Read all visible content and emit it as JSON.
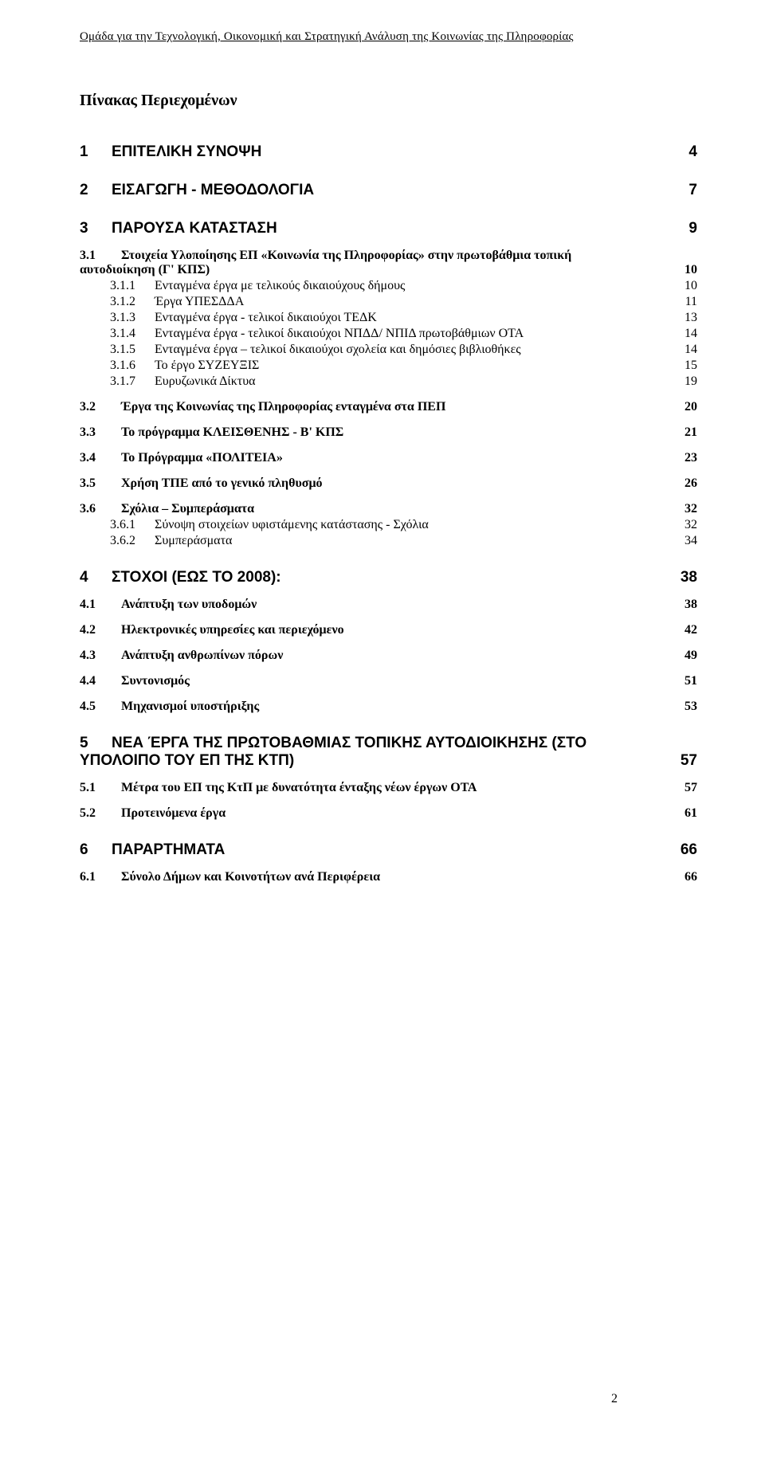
{
  "header": "Ομάδα για την Τεχνολογική, Οικονομική και Στρατηγική Ανάλυση της Κοινωνίας της Πληροφορίας",
  "title": "Πίνακας Περιεχομένων",
  "page_number": "2",
  "toc": {
    "s1": {
      "num": "1",
      "label": "ΕΠΙΤΕΛΙΚΗ ΣΥΝΟΨΗ",
      "page": "4"
    },
    "s2": {
      "num": "2",
      "label": "ΕΙΣΑΓΩΓΗ - ΜΕΘΟΔΟΛΟΓΙΑ",
      "page": "7"
    },
    "s3": {
      "num": "3",
      "label": "ΠΑΡΟΥΣΑ ΚΑΤΑΣΤΑΣΗ",
      "page": "9"
    },
    "s3_1": {
      "num": "3.1",
      "label_a": "Στοιχεία Υλοποίησης ΕΠ «Κοινωνία της Πληροφορίας» στην πρωτοβάθμια τοπική",
      "label_b": "αυτοδιοίκηση (Γ' ΚΠΣ)",
      "page": "10"
    },
    "s3_1_1": {
      "num": "3.1.1",
      "label": "Ενταγμένα έργα με τελικούς δικαιούχους δήμους",
      "page": "10"
    },
    "s3_1_2": {
      "num": "3.1.2",
      "label": "Έργα ΥΠΕΣΔΔΑ",
      "page": "11"
    },
    "s3_1_3": {
      "num": "3.1.3",
      "label": "Ενταγμένα έργα - τελικοί δικαιούχοι ΤΕΔΚ",
      "page": "13"
    },
    "s3_1_4": {
      "num": "3.1.4",
      "label": "Ενταγμένα έργα - τελικοί δικαιούχοι ΝΠΔΔ/ ΝΠΙΔ πρωτοβάθμιων ΟΤΑ",
      "page": "14"
    },
    "s3_1_5": {
      "num": "3.1.5",
      "label": "Ενταγμένα έργα – τελικοί δικαιούχοι σχολεία και δημόσιες βιβλιοθήκες",
      "page": "14"
    },
    "s3_1_6": {
      "num": "3.1.6",
      "label": "Το έργο ΣΥΖΕΥΞΙΣ",
      "page": "15"
    },
    "s3_1_7": {
      "num": "3.1.7",
      "label": "Ευρυζωνικά Δίκτυα",
      "page": "19"
    },
    "s3_2": {
      "num": "3.2",
      "label": "Έργα της Κοινωνίας της Πληροφορίας ενταγμένα στα ΠΕΠ",
      "page": "20"
    },
    "s3_3": {
      "num": "3.3",
      "label": "Το πρόγραμμα ΚΛΕΙΣΘΕΝΗΣ - Β' ΚΠΣ",
      "page": "21"
    },
    "s3_4": {
      "num": "3.4",
      "label": "Το Πρόγραμμα «ΠΟΛΙΤΕΙΑ»",
      "page": "23"
    },
    "s3_5": {
      "num": "3.5",
      "label": "Χρήση ΤΠΕ από το γενικό πληθυσμό",
      "page": "26"
    },
    "s3_6": {
      "num": "3.6",
      "label": "Σχόλια – Συμπεράσματα",
      "page": "32"
    },
    "s3_6_1": {
      "num": "3.6.1",
      "label": "Σύνοψη στοιχείων υφιστάμενης κατάστασης - Σχόλια",
      "page": "32"
    },
    "s3_6_2": {
      "num": "3.6.2",
      "label": "Συμπεράσματα",
      "page": "34"
    },
    "s4": {
      "num": "4",
      "label": "ΣΤΟΧΟΙ (ΕΩΣ ΤΟ 2008):",
      "page": "38"
    },
    "s4_1": {
      "num": "4.1",
      "label": "Ανάπτυξη των υποδομών",
      "page": "38"
    },
    "s4_2": {
      "num": "4.2",
      "label": "Ηλεκτρονικές υπηρεσίες και περιεχόμενο",
      "page": "42"
    },
    "s4_3": {
      "num": "4.3",
      "label": "Ανάπτυξη ανθρωπίνων πόρων",
      "page": "49"
    },
    "s4_4": {
      "num": "4.4",
      "label": "Συντονισμός",
      "page": "51"
    },
    "s4_5": {
      "num": "4.5",
      "label": "Μηχανισμοί υποστήριξης",
      "page": "53"
    },
    "s5": {
      "num": "5",
      "label_a": "ΝΕΑ ΈΡΓΑ ΤΗΣ ΠΡΩΤΟΒΑΘΜΙΑΣ ΤΟΠΙΚΗΣ ΑΥΤΟΔΙΟΙΚΗΣΗΣ (ΣΤΟ",
      "label_b": "ΥΠΟΛΟΙΠΟ ΤΟΥ ΕΠ ΤΗΣ ΚΤΠ)",
      "page": "57"
    },
    "s5_1": {
      "num": "5.1",
      "label": "Μέτρα του ΕΠ της ΚτΠ με δυνατότητα ένταξης νέων έργων ΟΤΑ",
      "page": "57"
    },
    "s5_2": {
      "num": "5.2",
      "label": "Προτεινόμενα έργα",
      "page": "61"
    },
    "s6": {
      "num": "6",
      "label": "ΠΑΡΑΡΤΗΜΑΤΑ",
      "page": "66"
    },
    "s6_1": {
      "num": "6.1",
      "label": "Σύνολο Δήμων και Κοινοτήτων ανά Περιφέρεια",
      "page": "66"
    }
  }
}
